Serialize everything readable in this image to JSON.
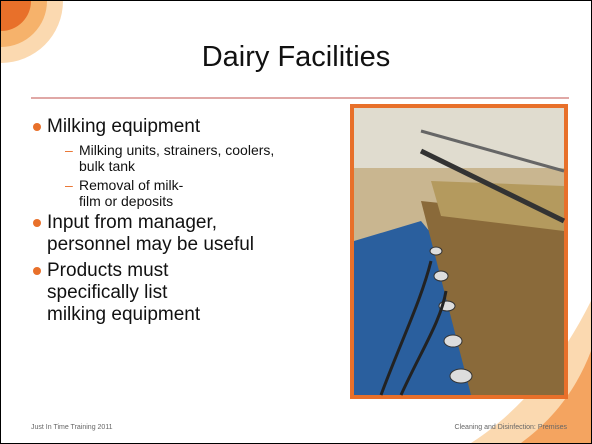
{
  "slide": {
    "title": "Dairy Facilities",
    "bullets": [
      {
        "text": "Milking equipment",
        "sub": [
          "Milking units, strainers, coolers, bulk tank",
          "Removal of milk-film or deposits"
        ]
      },
      {
        "text": "Input from manager, personnel may be useful"
      },
      {
        "text": "Products must specifically list milking equipment"
      }
    ],
    "footer_left": "Just In Time Training 2011",
    "footer_right": "Cleaning and Disinfection: Premises"
  }
}
